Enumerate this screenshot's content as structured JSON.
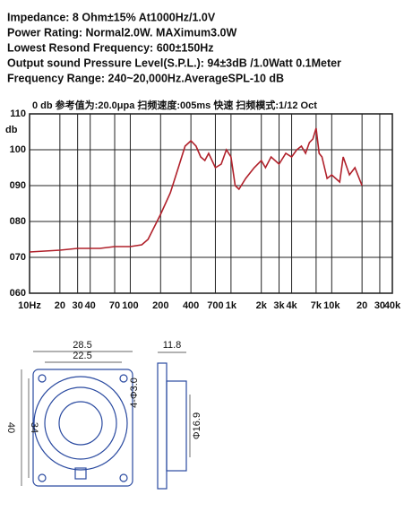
{
  "specs": [
    "Impedance: 8 Ohm±15%  At1000Hz/1.0V",
    "Power Rating: Normal2.0W. MAXimum3.0W",
    "Lowest Resond Frequency: 600±150Hz",
    "Output sound Pressure Level(S.P.L.): 94±3dB /1.0Watt 0.1Meter",
    "Frequency Range: 240~20,000Hz.AverageSPL-10 dB"
  ],
  "chart_data": {
    "type": "line",
    "header": "0 db   参考值为:20.0μpa   扫频速度:005ms   快速   扫频模式:1/12   Oct",
    "y_label": "db",
    "log_x": true,
    "grid": true,
    "xlim": [
      10,
      40000
    ],
    "xticks": [
      {
        "value": 10,
        "label": "10Hz"
      },
      20,
      30,
      40,
      70,
      100,
      200,
      400,
      700,
      {
        "value": 1000,
        "label": "1k"
      },
      {
        "value": 2000,
        "label": "2k"
      },
      {
        "value": 3000,
        "label": "3k"
      },
      {
        "value": 4000,
        "label": "4k"
      },
      {
        "value": 7000,
        "label": "7k"
      },
      {
        "value": 10000,
        "label": "10k"
      },
      {
        "value": 20000,
        "label": "20"
      },
      {
        "value": 30000,
        "label": "30"
      },
      {
        "value": 40000,
        "label": "40k"
      }
    ],
    "ylim": [
      60,
      110
    ],
    "yticks": [
      {
        "value": 60,
        "label": "060"
      },
      {
        "value": 70,
        "label": "070"
      },
      {
        "value": 80,
        "label": "080"
      },
      {
        "value": 90,
        "label": "090"
      },
      100,
      110
    ],
    "series": [
      {
        "color": "#b0202a",
        "x": [
          10,
          20,
          30,
          50,
          70,
          100,
          130,
          150,
          200,
          250,
          300,
          350,
          400,
          450,
          500,
          550,
          600,
          700,
          800,
          900,
          1000,
          1100,
          1200,
          1400,
          1700,
          2000,
          2200,
          2500,
          3000,
          3500,
          4000,
          4500,
          5000,
          5500,
          6000,
          6500,
          7000,
          7500,
          8000,
          9000,
          10000,
          12000,
          13000,
          15000,
          17000,
          20000
        ],
        "values": [
          71.5,
          72,
          72.5,
          72.5,
          73,
          73,
          73.5,
          75,
          82,
          88,
          95,
          101,
          102.5,
          101,
          98,
          97,
          99,
          95,
          96,
          100,
          98,
          90,
          89,
          92,
          95,
          97,
          95,
          98,
          96,
          99,
          98,
          100,
          101,
          99,
          102,
          103,
          106,
          99,
          98,
          92,
          93,
          91,
          98,
          93,
          95,
          90
        ]
      }
    ]
  },
  "drawing": {
    "dimensions": [
      "28.5",
      "22.5",
      "11.8",
      "4-Φ3.0",
      "40",
      "34",
      "Φ16.9"
    ]
  }
}
